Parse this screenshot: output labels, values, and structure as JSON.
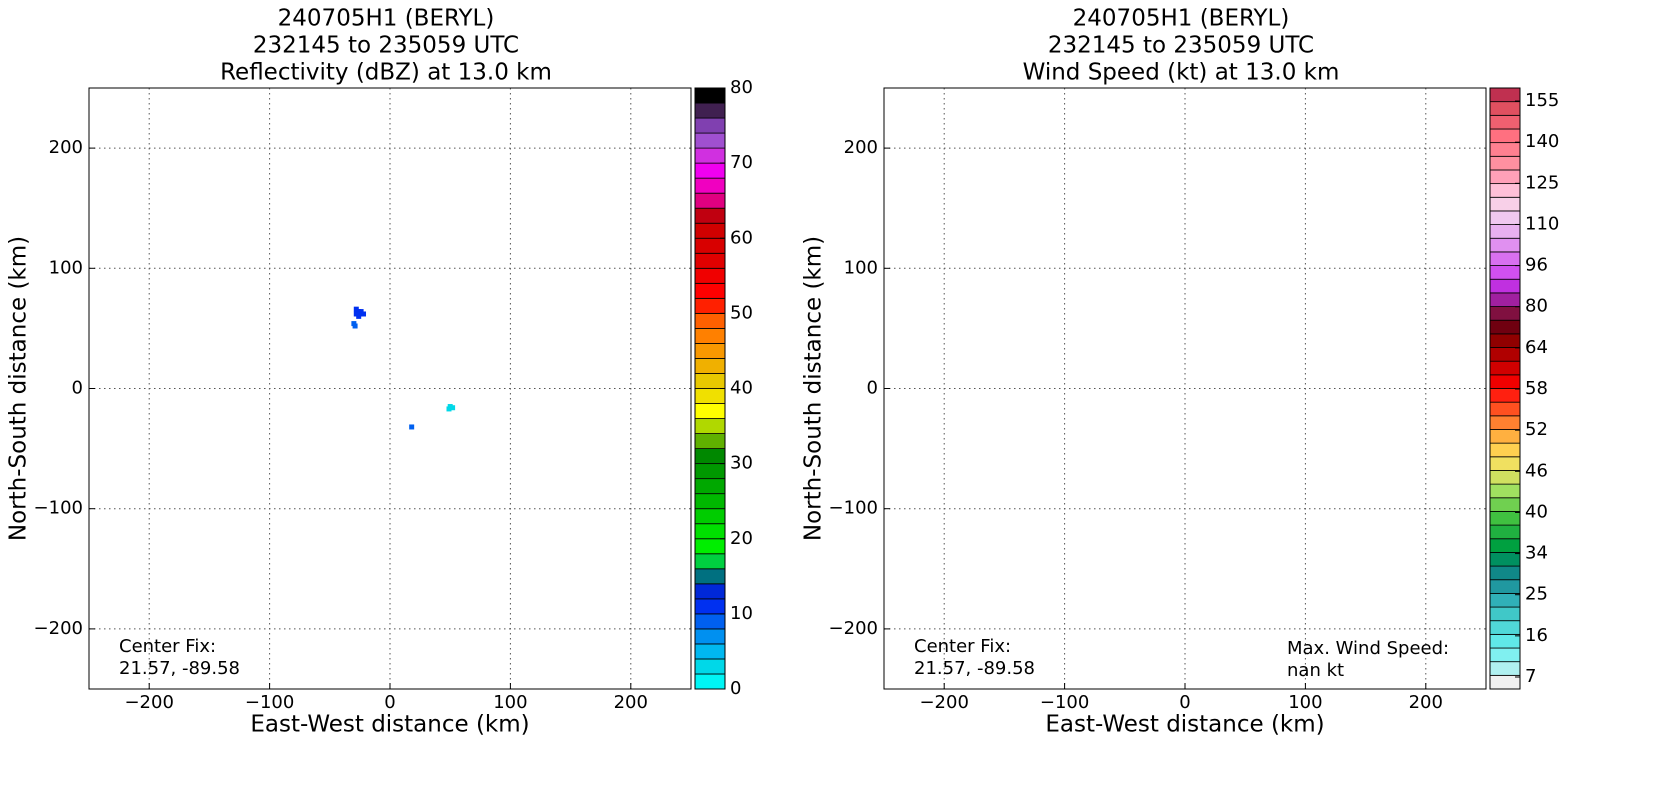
{
  "chart_data": [
    {
      "type": "heatmap",
      "title": [
        "240705H1 (BERYL)",
        "232145 to 235059 UTC",
        "Reflectivity (dBZ) at 13.0 km"
      ],
      "xlabel": "East-West distance (km)",
      "ylabel": "North-South distance (km)",
      "xlim": [
        -250,
        250
      ],
      "ylim": [
        -250,
        250
      ],
      "xticks": [
        {
          "value": -200,
          "label": "−200"
        },
        {
          "value": -100,
          "label": "−100"
        },
        0,
        100,
        200
      ],
      "yticks": [
        {
          "value": -200,
          "label": "−200"
        },
        {
          "value": -100,
          "label": "−100"
        },
        0,
        100,
        200
      ],
      "grid": true,
      "annotations": [
        "Center Fix:",
        "21.57, -89.58"
      ],
      "points": {
        "x": [
          -28,
          -26,
          -24,
          -22,
          -26,
          -28,
          -24,
          -30,
          -29,
          18,
          50,
          52,
          49
        ],
        "y": [
          66,
          64,
          62,
          62,
          60,
          62,
          64,
          54,
          52,
          -32,
          -15,
          -16,
          -17
        ],
        "values": [
          11,
          11,
          11,
          11,
          11,
          11,
          11,
          8,
          8,
          8,
          2,
          2,
          2
        ]
      },
      "colorbar": {
        "clim": [
          0,
          80
        ],
        "ticks": [
          0,
          10,
          20,
          30,
          40,
          50,
          60,
          70,
          80
        ],
        "colors": [
          "#00f5f5",
          "#00d8e8",
          "#00b8f0",
          "#0090f0",
          "#0060f0",
          "#0030f0",
          "#0028d8",
          "#007080",
          "#00d040",
          "#00ee00",
          "#00e000",
          "#00cc00",
          "#00b800",
          "#00a800",
          "#009800",
          "#008800",
          "#60b000",
          "#b0d800",
          "#ffff00",
          "#f0e000",
          "#e8c800",
          "#f0b000",
          "#f89800",
          "#ff8000",
          "#ff6000",
          "#ff2000",
          "#ff0000",
          "#f00000",
          "#e00000",
          "#d80000",
          "#d00000",
          "#c00010",
          "#e00080",
          "#f000c0",
          "#f000f0",
          "#d030e0",
          "#a050d0",
          "#8040b0",
          "#402050",
          "#000000"
        ]
      }
    },
    {
      "type": "heatmap",
      "title": [
        "240705H1 (BERYL)",
        "232145 to 235059 UTC",
        "Wind Speed (kt) at 13.0 km"
      ],
      "xlabel": "East-West distance (km)",
      "ylabel": "North-South distance (km)",
      "xlim": [
        -250,
        250
      ],
      "ylim": [
        -250,
        250
      ],
      "xticks": [
        {
          "value": -200,
          "label": "−200"
        },
        {
          "value": -100,
          "label": "−100"
        },
        0,
        100,
        200
      ],
      "yticks": [
        {
          "value": -200,
          "label": "−200"
        },
        {
          "value": -100,
          "label": "−100"
        },
        0,
        100,
        200
      ],
      "grid": true,
      "annotations": [
        "Center Fix:",
        "21.57, -89.58"
      ],
      "annotations_right": [
        "Max. Wind Speed:",
        "nan kt"
      ],
      "colorbar": {
        "ticks": [
          7,
          16,
          25,
          34,
          40,
          46,
          52,
          58,
          64,
          80,
          96,
          110,
          125,
          140,
          155
        ],
        "colors": [
          "#f0f0f0",
          "#b0f0f0",
          "#80f0f0",
          "#60e8e8",
          "#50d8d8",
          "#40c8c8",
          "#30b0b8",
          "#2098a0",
          "#108888",
          "#009060",
          "#00a040",
          "#20b040",
          "#40c040",
          "#70d050",
          "#a0e060",
          "#d0e060",
          "#f0e060",
          "#ffd050",
          "#ffb040",
          "#ff8030",
          "#ff5020",
          "#ff2010",
          "#f00000",
          "#d00000",
          "#b00000",
          "#900000",
          "#700010",
          "#801040",
          "#a020a0",
          "#c030e0",
          "#d050f0",
          "#d870f0",
          "#e090f0",
          "#e8b0f0",
          "#f0c8f0",
          "#f8d0e8",
          "#ffc0d8",
          "#ffa0b8",
          "#ff90a0",
          "#ff8090",
          "#ff7080",
          "#f06070",
          "#e05060",
          "#c03050"
        ]
      }
    }
  ]
}
